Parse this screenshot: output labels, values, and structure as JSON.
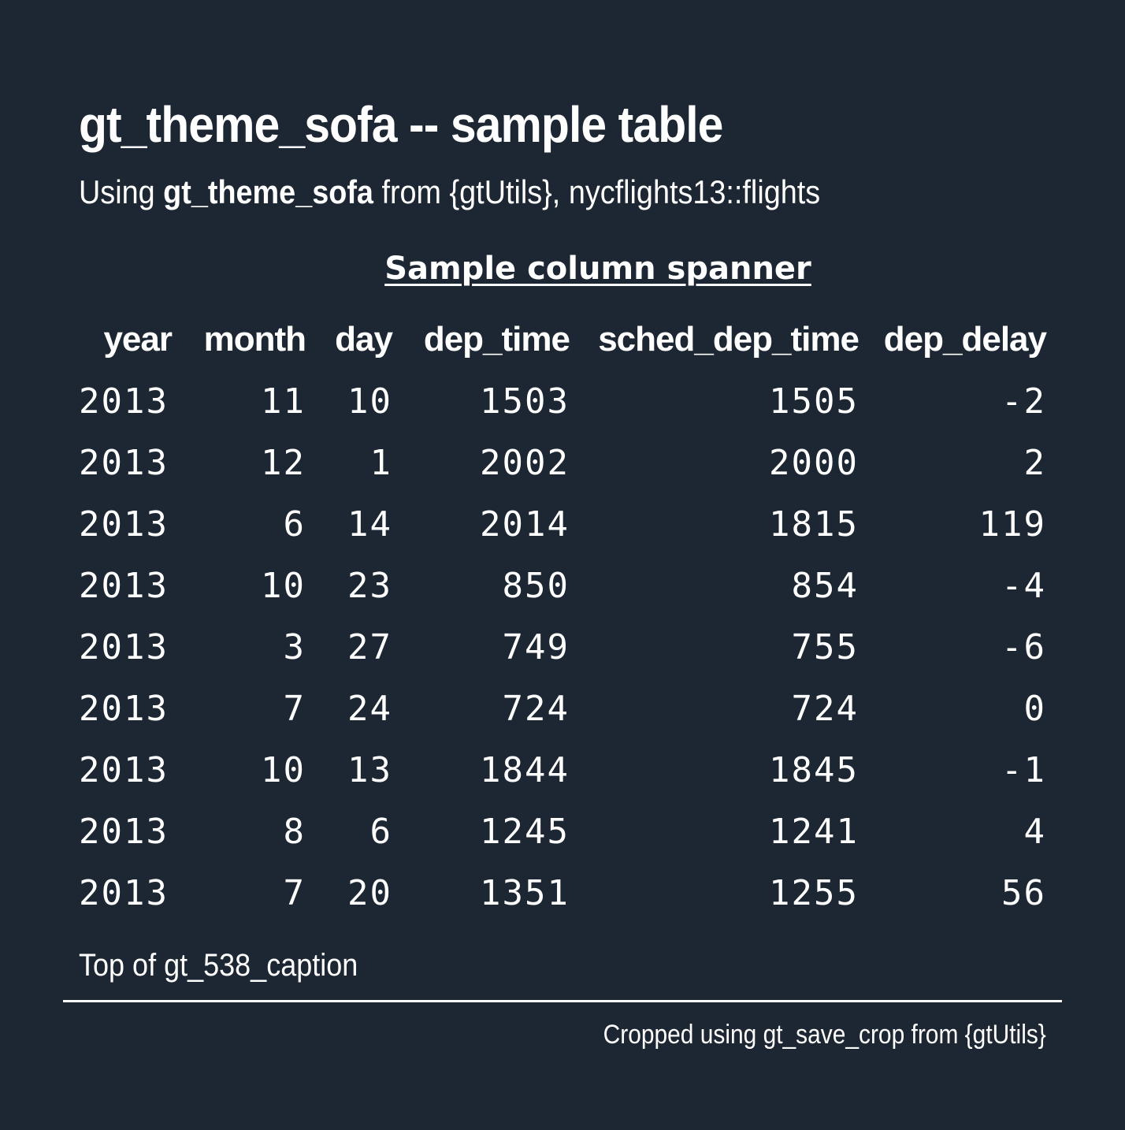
{
  "header": {
    "title": "gt_theme_sofa -- sample table",
    "subtitle_prefix": "Using ",
    "subtitle_bold": "gt_theme_sofa",
    "subtitle_suffix": " from {gtUtils}, nycflights13::flights"
  },
  "spanner": "Sample column spanner",
  "columns": [
    "year",
    "month",
    "day",
    "dep_time",
    "sched_dep_time",
    "dep_delay"
  ],
  "rows": [
    [
      "2013",
      "11",
      "10",
      "1503",
      "1505",
      "-2"
    ],
    [
      "2013",
      "12",
      "1",
      "2002",
      "2000",
      "2"
    ],
    [
      "2013",
      "6",
      "14",
      "2014",
      "1815",
      "119"
    ],
    [
      "2013",
      "10",
      "23",
      "850",
      "854",
      "-4"
    ],
    [
      "2013",
      "3",
      "27",
      "749",
      "755",
      "-6"
    ],
    [
      "2013",
      "7",
      "24",
      "724",
      "724",
      "0"
    ],
    [
      "2013",
      "10",
      "13",
      "1844",
      "1845",
      "-1"
    ],
    [
      "2013",
      "8",
      "6",
      "1245",
      "1241",
      "4"
    ],
    [
      "2013",
      "7",
      "20",
      "1351",
      "1255",
      "56"
    ]
  ],
  "caption": "Top of gt_538_caption",
  "source_note": "Cropped using gt_save_crop from {gtUtils}",
  "colors": {
    "background": "#1d2633",
    "text": "#ffffff"
  }
}
